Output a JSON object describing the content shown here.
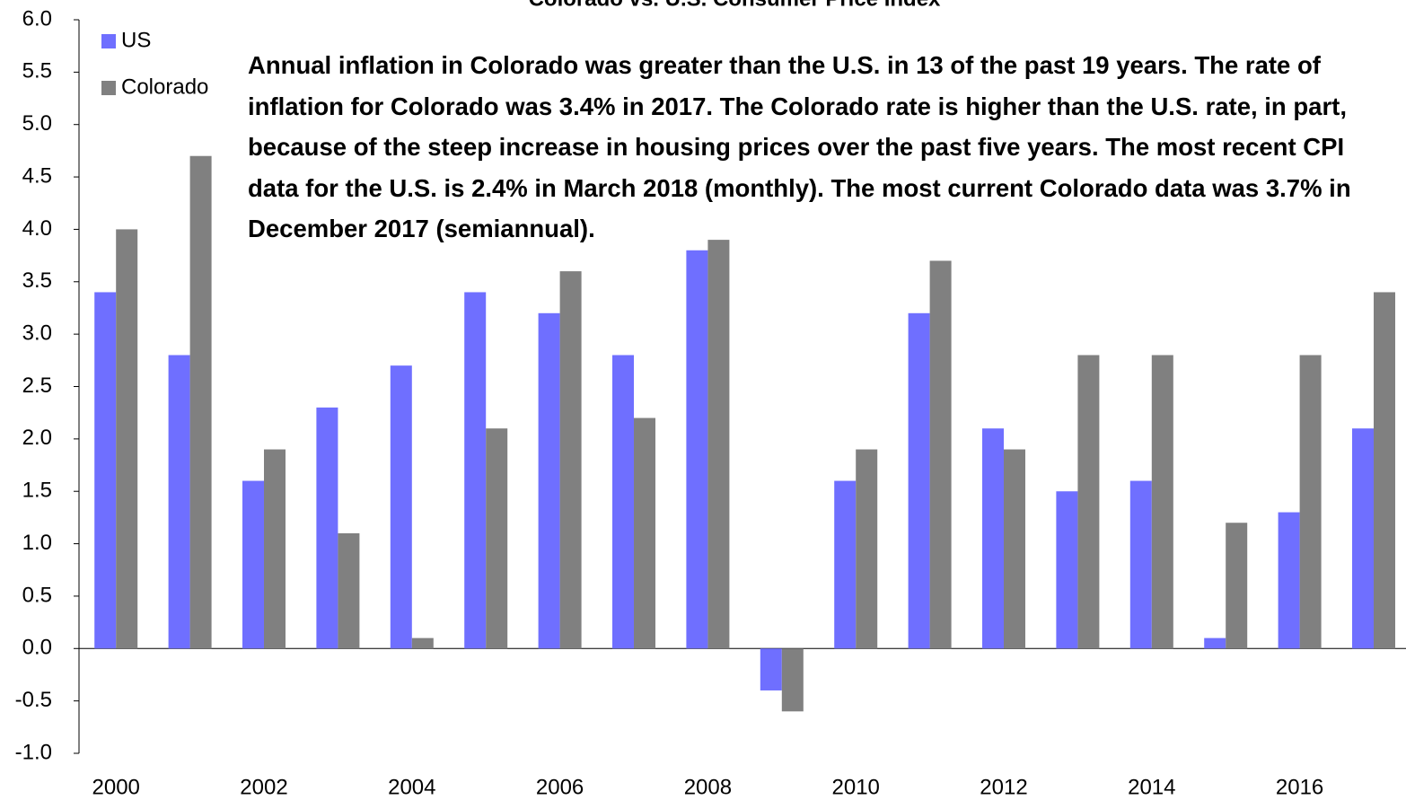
{
  "chart_data": {
    "type": "bar",
    "title": "Colorado vs. U.S. Consumer Price Index",
    "annotation": "Annual inflation in Colorado was greater than the U.S. in 13 of the past 19 years. The rate of inflation for Colorado was 3.4% in 2017. The Colorado rate is higher than the U.S. rate, in part, because of the steep increase in housing prices over the past five years. The most recent CPI data for the U.S. is 2.4% in March 2018 (monthly). The most current Colorado data was 3.7% in December 2017 (semiannual).",
    "categories": [
      "2000",
      null,
      "2002",
      null,
      "2004",
      null,
      "2006",
      null,
      "2008",
      null,
      "2010",
      null,
      "2012",
      null,
      "2014",
      null,
      "2016",
      null
    ],
    "series": [
      {
        "name": "US",
        "color": "#6f6fff",
        "values": [
          3.4,
          2.8,
          1.6,
          2.3,
          2.7,
          3.4,
          3.2,
          2.8,
          3.8,
          -0.4,
          1.6,
          3.2,
          2.1,
          1.5,
          1.6,
          0.1,
          1.3,
          2.1
        ]
      },
      {
        "name": "Colorado",
        "color": "#808080",
        "values": [
          4.0,
          4.7,
          1.9,
          1.1,
          0.1,
          2.1,
          3.6,
          2.2,
          3.9,
          -0.6,
          1.9,
          3.7,
          1.9,
          2.8,
          2.8,
          1.2,
          2.8,
          3.4
        ]
      }
    ],
    "ylim": [
      -1,
      6
    ],
    "yticks": [
      {
        "value": -1,
        "label": "-1.0"
      },
      -0.5,
      {
        "value": 0,
        "label": "0.0"
      },
      0.5,
      {
        "value": 1,
        "label": "1.0"
      },
      1.5,
      {
        "value": 2,
        "label": "2.0"
      },
      2.5,
      {
        "value": 3,
        "label": "3.0"
      },
      3.5,
      {
        "value": 4,
        "label": "4.0"
      },
      4.5,
      {
        "value": 5,
        "label": "5.0"
      },
      5.5,
      {
        "value": 6,
        "label": "6.0"
      }
    ],
    "legend": "top-left"
  }
}
